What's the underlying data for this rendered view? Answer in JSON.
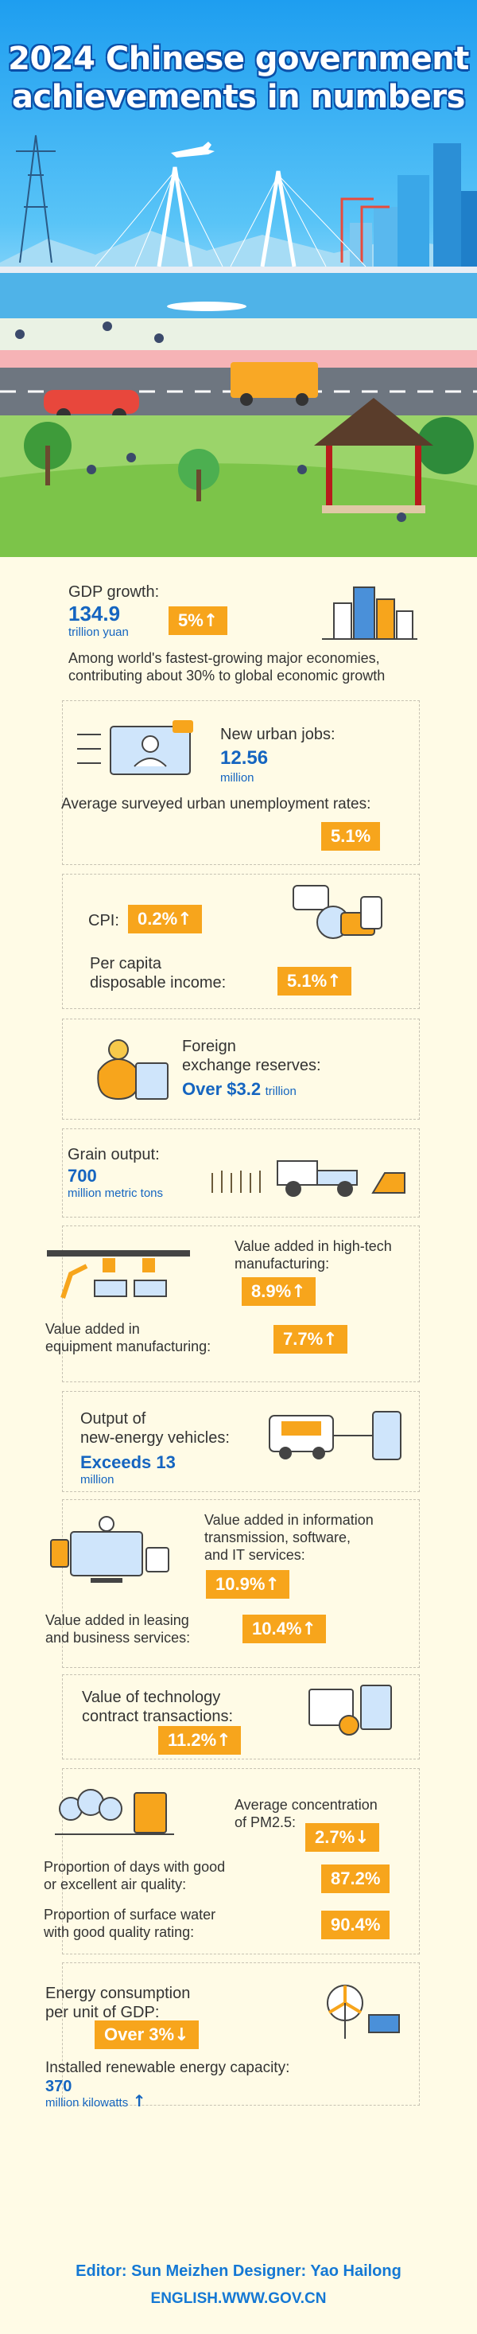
{
  "title": {
    "line1": "2024 Chinese government",
    "line2": "achievements in numbers"
  },
  "gdp": {
    "label": "GDP growth:",
    "value": "134.9",
    "unit": "trillion yuan",
    "rate": "5%",
    "rate_arrow": "↑",
    "note_line1": "Among world's fastest-growing major economies,",
    "note_line2": "contributing about 30% to global economic growth"
  },
  "jobs": {
    "label": "New urban jobs:",
    "value": "12.56",
    "unit": "million",
    "unemp_label": "Average surveyed urban unemployment rates:",
    "unemp_value": "5.1%"
  },
  "cpi": {
    "label": "CPI:",
    "value": "0.2%",
    "arrow": "↑",
    "income_line1": "Per capita",
    "income_line2": "disposable income:",
    "income_value": "5.1%",
    "income_arrow": "↑"
  },
  "forex": {
    "line1": "Foreign",
    "line2": "exchange reserves:",
    "value": "Over $3.2",
    "unit": "trillion"
  },
  "grain": {
    "label": "Grain output:",
    "value": "700",
    "unit": "million metric tons"
  },
  "hightech": {
    "label_line1": "Value added in high-tech",
    "label_line2": "manufacturing:",
    "value": "8.9%",
    "arrow": "↑",
    "equip_line1": "Value added in",
    "equip_line2": "equipment manufacturing:",
    "equip_value": "7.7%",
    "equip_arrow": "↑"
  },
  "nev": {
    "line1": "Output of",
    "line2": "new-energy vehicles:",
    "value": "Exceeds 13",
    "unit": "million"
  },
  "it": {
    "line1": "Value added in information",
    "line2": "transmission, software,",
    "line3": "and IT services:",
    "value": "10.9%",
    "arrow": "↑",
    "leasing_line1": "Value added in leasing",
    "leasing_line2": "and business services:",
    "leasing_value": "10.4%",
    "leasing_arrow": "↑"
  },
  "tech": {
    "line1": "Value of technology",
    "line2": "contract transactions:",
    "value": "11.2%",
    "arrow": "↑"
  },
  "env": {
    "pm_line1": "Average concentration",
    "pm_line2": "of PM2.5:",
    "pm_value": "2.7%",
    "pm_arrow": "↓",
    "air_line1": "Proportion of days with good",
    "air_line2": "or excellent air quality:",
    "air_value": "87.2%",
    "water_line1": "Proportion of surface water",
    "water_line2": "with good quality rating:",
    "water_value": "90.4%"
  },
  "energy": {
    "line1": "Energy consumption",
    "line2": "per unit of GDP:",
    "value": "Over 3%",
    "arrow": "↓",
    "renew_label": "Installed renewable energy capacity:",
    "renew_value": "370",
    "renew_unit": "million kilowatts",
    "renew_arrow": "↑"
  },
  "footer": {
    "credits": "Editor: Sun Meizhen  Designer: Yao Hailong",
    "site": "ENGLISH.WWW.GOV.CN"
  },
  "colors": {
    "accent": "#f7a51c",
    "blue": "#1565c0",
    "background": "#fffbe6",
    "sky": "#1e9ef0"
  }
}
